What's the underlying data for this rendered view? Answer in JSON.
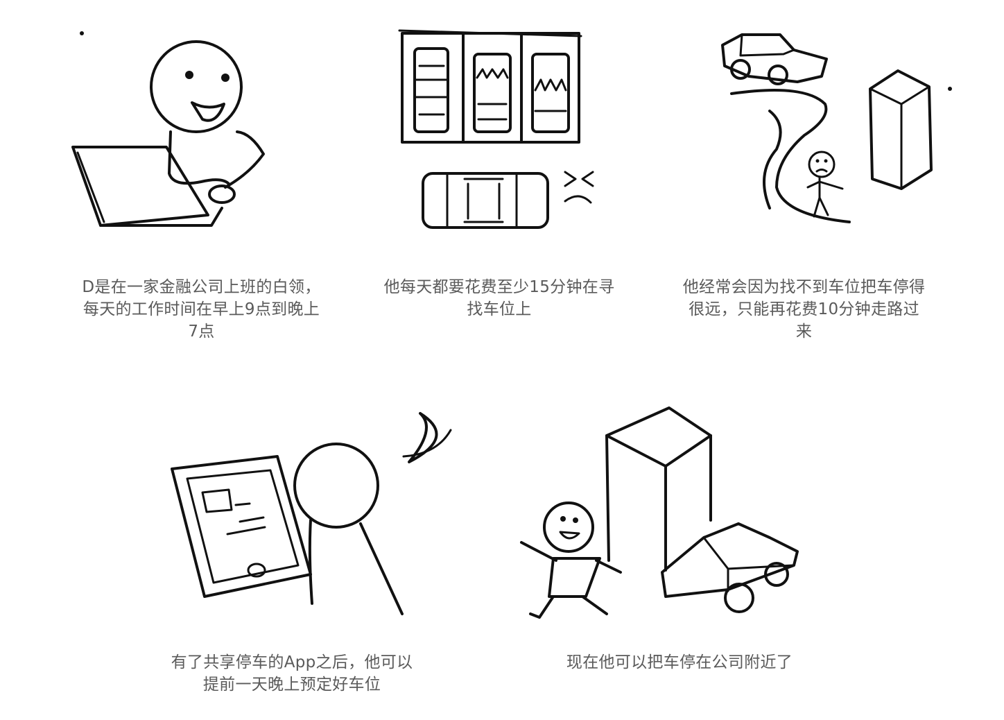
{
  "panels": [
    {
      "id": "office",
      "caption": "D是在一家金融公司上班的白领，每天的工作时间在早上9点到晚上7点"
    },
    {
      "id": "parking",
      "caption": "他每天都要花费至少15分钟在寻找车位上"
    },
    {
      "id": "far",
      "caption": "他经常会因为找不到车位把车停得很远，只能再花费10分钟走路过来"
    },
    {
      "id": "app",
      "caption": "有了共享停车的App之后，他可以提前一天晚上预定好车位"
    },
    {
      "id": "happy",
      "caption": "现在他可以把车停在公司附近了"
    }
  ],
  "colors": {
    "ink": "#111111",
    "caption": "#5a5a5a",
    "background": "#ffffff"
  }
}
